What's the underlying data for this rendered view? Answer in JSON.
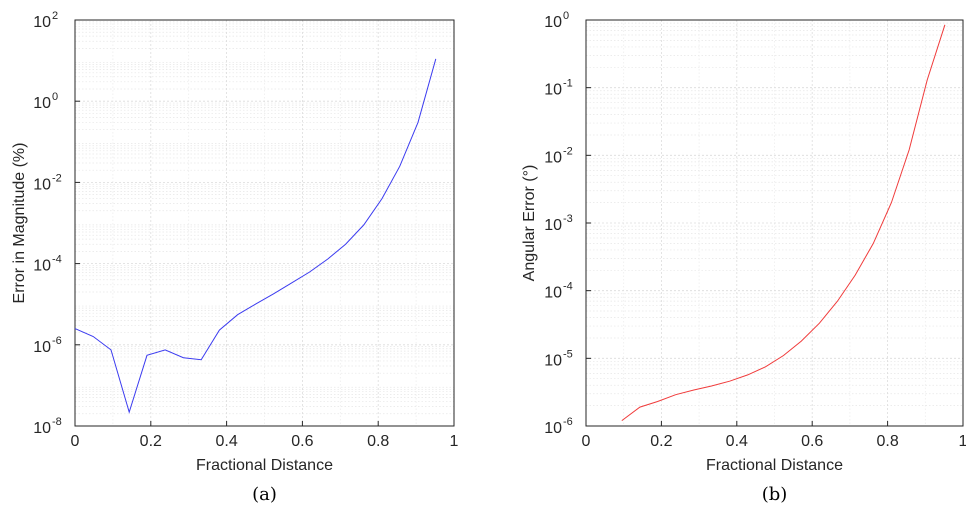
{
  "chart_data": [
    {
      "type": "line",
      "caption": "(a)",
      "xlabel": "Fractional Distance",
      "ylabel": "Error in Magnitude (%)",
      "xlim": [
        0,
        1
      ],
      "ylim": [
        1e-08,
        100
      ],
      "yscale": "log",
      "grid": true,
      "xticks": [
        "0",
        "0.2",
        "0.4",
        "0.6",
        "0.8",
        "1"
      ],
      "yticks": [
        {
          "base": "10",
          "exp": "-8"
        },
        {
          "base": "10",
          "exp": "-6"
        },
        {
          "base": "10",
          "exp": "-4"
        },
        {
          "base": "10",
          "exp": "-2"
        },
        {
          "base": "10",
          "exp": "0"
        },
        {
          "base": "10",
          "exp": "2"
        }
      ],
      "color": "#3b3bf0",
      "x": [
        0.0,
        0.048,
        0.095,
        0.143,
        0.19,
        0.238,
        0.286,
        0.333,
        0.381,
        0.429,
        0.476,
        0.524,
        0.571,
        0.619,
        0.667,
        0.714,
        0.762,
        0.81,
        0.857,
        0.905,
        0.952
      ],
      "y": [
        2.5e-06,
        1.6e-06,
        7.5e-07,
        2.2e-08,
        5.5e-07,
        7.5e-07,
        4.8e-07,
        4.3e-07,
        2.3e-06,
        5.5e-06,
        1e-05,
        1.8e-05,
        3.3e-05,
        6.2e-05,
        0.00013,
        0.0003,
        0.0009,
        0.004,
        0.025,
        0.3,
        11
      ]
    },
    {
      "type": "line",
      "caption": "(b)",
      "xlabel": "Fractional Distance",
      "ylabel": "Angular Error (°)",
      "xlim": [
        0,
        1
      ],
      "ylim": [
        1e-06,
        1
      ],
      "yscale": "log",
      "grid": true,
      "xticks": [
        "0",
        "0.2",
        "0.4",
        "0.6",
        "0.8",
        "1"
      ],
      "yticks": [
        {
          "base": "10",
          "exp": "-6"
        },
        {
          "base": "10",
          "exp": "-5"
        },
        {
          "base": "10",
          "exp": "-4"
        },
        {
          "base": "10",
          "exp": "-3"
        },
        {
          "base": "10",
          "exp": "-2"
        },
        {
          "base": "10",
          "exp": "-1"
        },
        {
          "base": "10",
          "exp": "0"
        }
      ],
      "color": "#f03b3b",
      "x": [
        0.095,
        0.143,
        0.19,
        0.238,
        0.286,
        0.333,
        0.381,
        0.429,
        0.476,
        0.524,
        0.571,
        0.619,
        0.667,
        0.714,
        0.762,
        0.81,
        0.857,
        0.905,
        0.952
      ],
      "y": [
        1.2e-06,
        1.9e-06,
        2.3e-06,
        2.9e-06,
        3.4e-06,
        3.9e-06,
        4.6e-06,
        5.7e-06,
        7.5e-06,
        1.1e-05,
        1.8e-05,
        3.3e-05,
        7e-05,
        0.00017,
        0.0005,
        0.002,
        0.012,
        0.13,
        0.85
      ]
    }
  ]
}
